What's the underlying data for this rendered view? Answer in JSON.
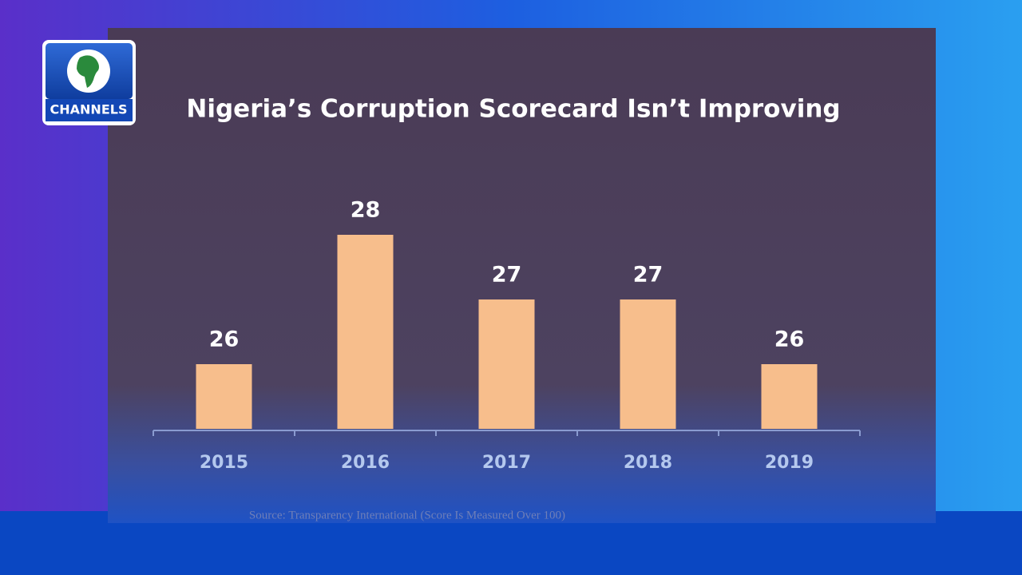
{
  "logo": "CHANNELS",
  "chart_data": {
    "type": "bar",
    "title": "Nigeria’s Corruption Scorecard Isn’t Improving",
    "categories": [
      "2015",
      "2016",
      "2017",
      "2018",
      "2019"
    ],
    "values": [
      26,
      28,
      27,
      27,
      26
    ],
    "color": "#f7be8c",
    "ylim": [
      25,
      29
    ],
    "source": "Source: Transparency International (Score Is Measured Over 100)"
  }
}
